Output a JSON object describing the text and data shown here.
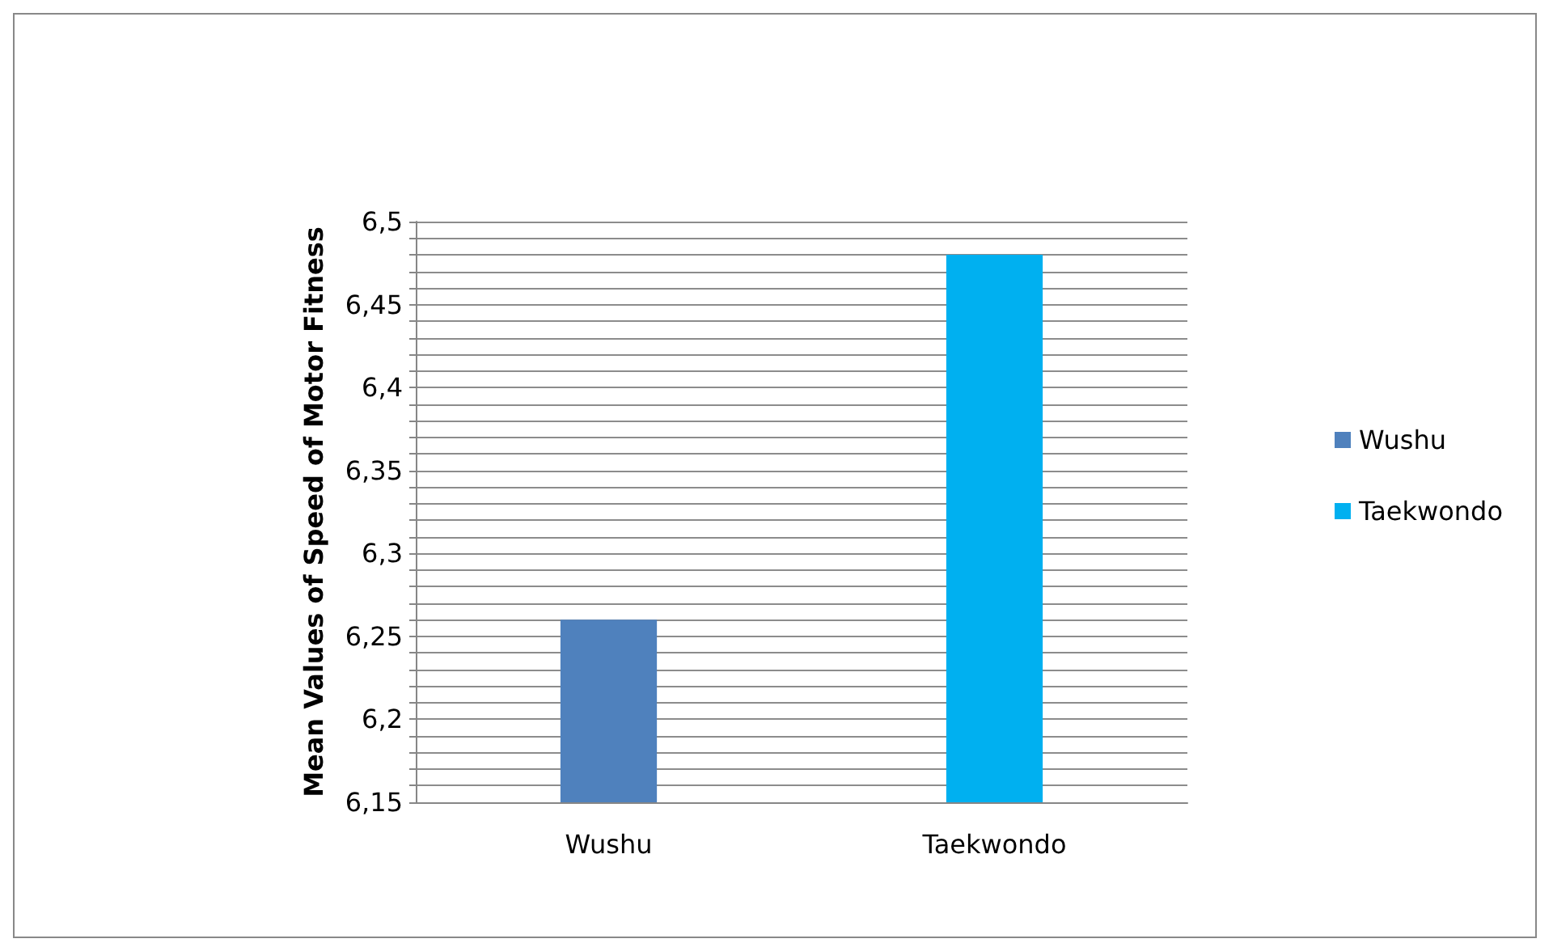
{
  "chart_data": {
    "type": "bar",
    "ylabel": "Mean Values of Speed of Motor Fitness",
    "categories": [
      "Wushu",
      "Taekwondo"
    ],
    "series": [
      {
        "name": "Wushu",
        "color": "#4f81bd",
        "values": [
          6.26,
          null
        ]
      },
      {
        "name": "Taekwondo",
        "color": "#00b0f0",
        "values": [
          null,
          6.48
        ]
      }
    ],
    "ylim": [
      6.15,
      6.5
    ],
    "yticks": [
      {
        "value": 6.15,
        "label": "6,15"
      },
      {
        "value": 6.16,
        "label": null
      },
      {
        "value": 6.17,
        "label": null
      },
      {
        "value": 6.18,
        "label": null
      },
      {
        "value": 6.19,
        "label": null
      },
      {
        "value": 6.2,
        "label": "6,2"
      },
      {
        "value": 6.21,
        "label": null
      },
      {
        "value": 6.22,
        "label": null
      },
      {
        "value": 6.23,
        "label": null
      },
      {
        "value": 6.24,
        "label": null
      },
      {
        "value": 6.25,
        "label": "6,25"
      },
      {
        "value": 6.26,
        "label": null
      },
      {
        "value": 6.27,
        "label": null
      },
      {
        "value": 6.28,
        "label": null
      },
      {
        "value": 6.29,
        "label": null
      },
      {
        "value": 6.3,
        "label": "6,3"
      },
      {
        "value": 6.31,
        "label": null
      },
      {
        "value": 6.32,
        "label": null
      },
      {
        "value": 6.33,
        "label": null
      },
      {
        "value": 6.34,
        "label": null
      },
      {
        "value": 6.35,
        "label": "6,35"
      },
      {
        "value": 6.36,
        "label": null
      },
      {
        "value": 6.37,
        "label": null
      },
      {
        "value": 6.38,
        "label": null
      },
      {
        "value": 6.39,
        "label": null
      },
      {
        "value": 6.4,
        "label": "6,4"
      },
      {
        "value": 6.41,
        "label": null
      },
      {
        "value": 6.42,
        "label": null
      },
      {
        "value": 6.43,
        "label": null
      },
      {
        "value": 6.44,
        "label": null
      },
      {
        "value": 6.45,
        "label": "6,45"
      },
      {
        "value": 6.46,
        "label": null
      },
      {
        "value": 6.47,
        "label": null
      },
      {
        "value": 6.48,
        "label": null
      },
      {
        "value": 6.49,
        "label": null
      },
      {
        "value": 6.5,
        "label": "6,5"
      }
    ],
    "grid": "y",
    "legend": "right"
  }
}
